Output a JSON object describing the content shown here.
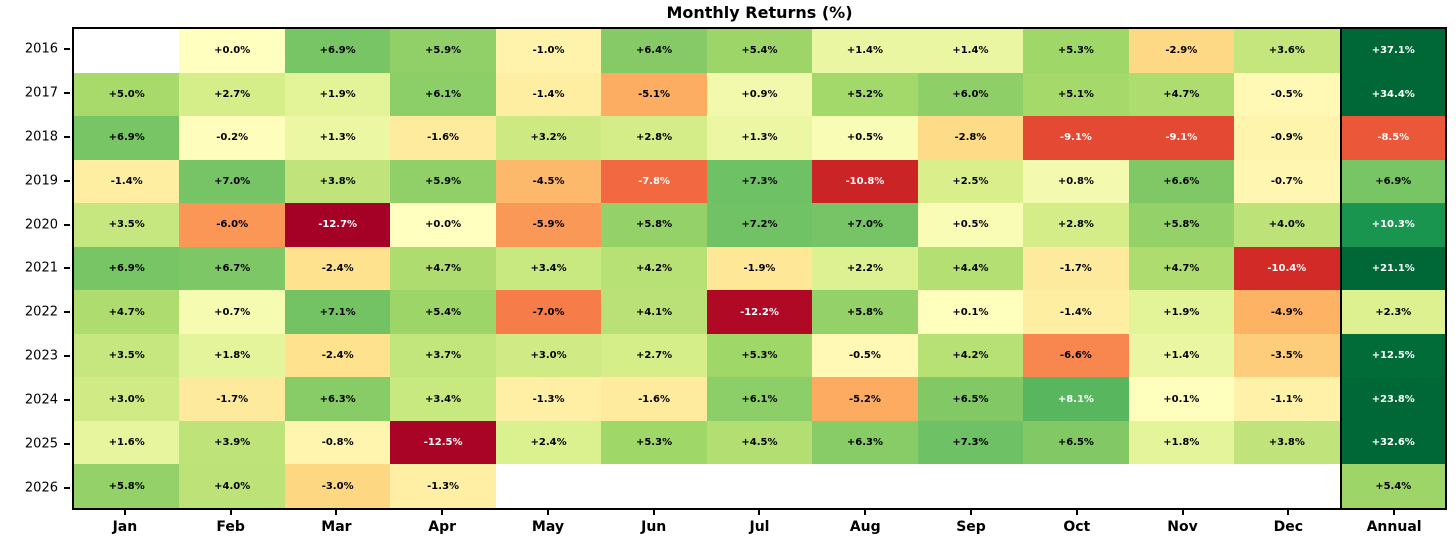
{
  "title": "Monthly Returns (%)",
  "chart_data": {
    "type": "heatmap",
    "title": "Monthly Returns (%)",
    "x_labels": [
      "Jan",
      "Feb",
      "Mar",
      "Apr",
      "May",
      "Jun",
      "Jul",
      "Aug",
      "Sep",
      "Oct",
      "Nov",
      "Dec",
      "Annual"
    ],
    "y_labels": [
      "2016",
      "2017",
      "2018",
      "2019",
      "2020",
      "2021",
      "2022",
      "2023",
      "2024",
      "2025",
      "2026"
    ],
    "value_unit": "%",
    "value_format": "signed, one decimal, percent suffix",
    "grid": false,
    "legend": "none",
    "colormap": {
      "name": "RdYlGn",
      "stops": [
        "#a50026",
        "#d73027",
        "#f46d43",
        "#fdae61",
        "#fee08b",
        "#ffffbf",
        "#d9ef8b",
        "#a6d96a",
        "#66bd63",
        "#1a9850",
        "#006837"
      ],
      "vmin": -12.7,
      "vmax": 12.7,
      "missing_cell_color": "#ffffff"
    },
    "cell_text_colors": {
      "dark": "#000000",
      "light": "#ffffff",
      "light_if_norm_at_or_below": 0.2,
      "light_if_norm_at_or_above": 0.8
    },
    "monthly_values": [
      [
        null,
        0.0,
        6.9,
        5.9,
        -1.0,
        6.4,
        5.4,
        1.4,
        1.4,
        5.3,
        -2.9,
        3.6
      ],
      [
        5.0,
        2.7,
        1.9,
        6.1,
        -1.4,
        -5.1,
        0.9,
        5.2,
        6.0,
        5.1,
        4.7,
        -0.5
      ],
      [
        6.9,
        -0.2,
        1.3,
        -1.6,
        3.2,
        2.8,
        1.3,
        0.5,
        -2.8,
        -9.1,
        -9.1,
        -0.9
      ],
      [
        -1.4,
        7.0,
        3.8,
        5.9,
        -4.5,
        -7.8,
        7.3,
        -10.8,
        2.5,
        0.8,
        6.6,
        -0.7
      ],
      [
        3.5,
        -6.0,
        -12.7,
        0.0,
        -5.9,
        5.8,
        7.2,
        7.0,
        0.5,
        2.8,
        5.8,
        4.0
      ],
      [
        6.9,
        6.7,
        -2.4,
        4.7,
        3.4,
        4.2,
        -1.9,
        2.2,
        4.4,
        -1.7,
        4.7,
        -10.4
      ],
      [
        4.7,
        0.7,
        7.1,
        5.4,
        -7.0,
        4.1,
        -12.2,
        5.8,
        0.1,
        -1.4,
        1.9,
        -4.9
      ],
      [
        3.5,
        1.8,
        -2.4,
        3.7,
        3.0,
        2.7,
        5.3,
        -0.5,
        4.2,
        -6.6,
        1.4,
        -3.5
      ],
      [
        3.0,
        -1.7,
        6.3,
        3.4,
        -1.3,
        -1.6,
        6.1,
        -5.2,
        6.5,
        8.1,
        0.1,
        -1.1
      ],
      [
        1.6,
        3.9,
        -0.8,
        -12.5,
        2.4,
        5.3,
        4.5,
        6.3,
        7.3,
        6.5,
        1.8,
        3.8
      ],
      [
        5.8,
        4.0,
        -3.0,
        -1.3,
        null,
        null,
        null,
        null,
        null,
        null,
        null,
        null
      ]
    ],
    "annual_values": [
      37.1,
      34.4,
      -8.5,
      6.9,
      10.3,
      21.1,
      2.3,
      12.5,
      23.8,
      32.6,
      5.4
    ]
  }
}
